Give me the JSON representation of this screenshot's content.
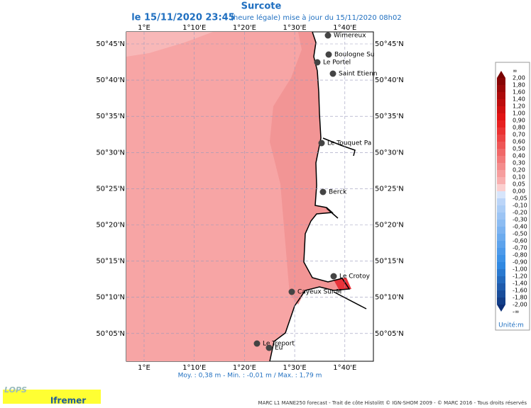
{
  "header": {
    "title": "Surcote",
    "date": "le 15/11/2020 23:45",
    "subtitle": "(heure légale) mise à jour du 15/11/2020 08h02"
  },
  "map": {
    "lon_ticks": [
      "1°E",
      "1°10'E",
      "1°20'E",
      "1°30'E",
      "1°40'E"
    ],
    "lat_ticks": [
      "50°45'N",
      "50°40'N",
      "50°35'N",
      "50°30'N",
      "50°25'N",
      "50°20'N",
      "50°15'N",
      "50°10'N",
      "50°05'N"
    ],
    "places": [
      "Wimereux",
      "Boulogne Su",
      "Le Portel",
      "Saint Etienn",
      "Le Touquet Pa",
      "Berck",
      "Le Crotoy",
      "Cayeux Sur M",
      "Le Treport",
      "Eu"
    ]
  },
  "legend": {
    "labels": [
      "∞",
      "2,00",
      "1,80",
      "1,60",
      "1,40",
      "1,20",
      "1,00",
      "0,90",
      "0,80",
      "0,70",
      "0,60",
      "0,50",
      "0,40",
      "0,30",
      "0,20",
      "0,10",
      "0,05",
      "0,00",
      "-0,05",
      "-0,10",
      "-0,20",
      "-0,30",
      "-0,40",
      "-0,50",
      "-0,60",
      "-0,70",
      "-0,80",
      "-0,90",
      "-1,00",
      "-1,20",
      "-1,40",
      "-1,60",
      "-1,80",
      "-2,00",
      "-∞"
    ],
    "unit": "Unité:m"
  },
  "stats": "Moy. : 0,38 m   -   Min. : -0,01 m / Max. : 1,79 m",
  "footer": {
    "credits": "MARC L1 MANE250 forecast - Trait de côte Histolitt © IGN-SHOM 2009 - © MARC 2016 - Tous droits réservés",
    "logos": [
      "LOPS",
      "Ifremer"
    ]
  }
}
